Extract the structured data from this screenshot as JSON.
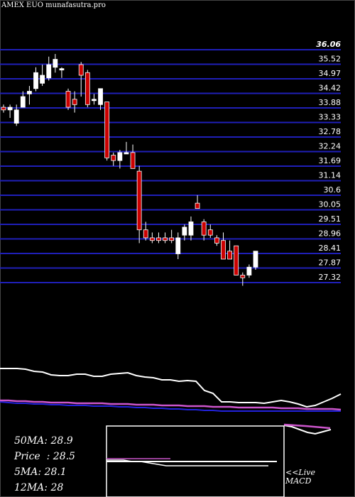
{
  "ticker": "AMEX  EUO munafasutra.pro",
  "stats": [
    {
      "label": "50MA",
      "value": "28.9"
    },
    {
      "label": "Price",
      "value": "28.5"
    },
    {
      "label": "5MA",
      "value": "28.1"
    },
    {
      "label": "12MA",
      "value": "28"
    }
  ],
  "macd_labels": {
    "live": "<<Live",
    "macd": "MACD"
  },
  "colors": {
    "up": "#ffffff",
    "down": "#cc0000",
    "grid": "#1f1fb8",
    "ma_pink": "#cc55cc",
    "ma_blue": "#2222dd"
  },
  "chart_data": {
    "type": "candlestick",
    "y_ticks": [
      "36.06",
      "35.52",
      "34.97",
      "34.42",
      "33.88",
      "33.33",
      "32.78",
      "32.24",
      "31.69",
      "31.14",
      "30.6",
      "30.05",
      "29.51",
      "28.96",
      "28.41",
      "27.87",
      "27.32"
    ],
    "ylim": [
      27.32,
      36.06
    ],
    "candles": [
      {
        "o": 33.9,
        "h": 34.0,
        "l": 33.7,
        "c": 33.8
      },
      {
        "o": 33.8,
        "h": 34.0,
        "l": 33.5,
        "c": 33.9
      },
      {
        "o": 33.3,
        "h": 34.0,
        "l": 33.2,
        "c": 33.8
      },
      {
        "o": 33.9,
        "h": 34.5,
        "l": 33.9,
        "c": 34.3
      },
      {
        "o": 34.4,
        "h": 34.7,
        "l": 34.0,
        "c": 34.5
      },
      {
        "o": 34.6,
        "h": 35.4,
        "l": 34.5,
        "c": 35.2
      },
      {
        "o": 34.8,
        "h": 35.5,
        "l": 34.7,
        "c": 35.1
      },
      {
        "o": 35.0,
        "h": 35.8,
        "l": 34.9,
        "c": 35.5
      },
      {
        "o": 35.4,
        "h": 35.9,
        "l": 35.2,
        "c": 35.7
      },
      {
        "o": 35.35,
        "h": 35.4,
        "l": 35.0,
        "c": 35.35
      },
      {
        "o": 34.5,
        "h": 34.6,
        "l": 33.8,
        "c": 33.9
      },
      {
        "o": 34.2,
        "h": 34.5,
        "l": 33.7,
        "c": 34.0
      },
      {
        "o": 35.5,
        "h": 35.6,
        "l": 34.3,
        "c": 35.1
      },
      {
        "o": 35.2,
        "h": 35.3,
        "l": 33.9,
        "c": 34.0
      },
      {
        "o": 34.2,
        "h": 34.4,
        "l": 34.0,
        "c": 34.2
      },
      {
        "o": 34.0,
        "h": 34.6,
        "l": 33.8,
        "c": 34.6
      },
      {
        "o": 34.1,
        "h": 34.1,
        "l": 31.9,
        "c": 32.0
      },
      {
        "o": 32.1,
        "h": 32.2,
        "l": 31.7,
        "c": 31.9
      },
      {
        "o": 31.9,
        "h": 32.3,
        "l": 31.6,
        "c": 32.2
      },
      {
        "o": 32.2,
        "h": 32.6,
        "l": 32.2,
        "c": 32.2
      },
      {
        "o": 32.2,
        "h": 32.5,
        "l": 31.6,
        "c": 31.6
      },
      {
        "o": 31.5,
        "h": 31.7,
        "l": 28.8,
        "c": 29.3
      },
      {
        "o": 29.3,
        "h": 29.6,
        "l": 28.9,
        "c": 29.0
      },
      {
        "o": 29.0,
        "h": 29.2,
        "l": 28.8,
        "c": 28.9
      },
      {
        "o": 29.0,
        "h": 29.2,
        "l": 28.8,
        "c": 28.9
      },
      {
        "o": 29.0,
        "h": 29.2,
        "l": 28.8,
        "c": 28.9
      },
      {
        "o": 29.0,
        "h": 29.3,
        "l": 28.8,
        "c": 28.9
      },
      {
        "o": 28.4,
        "h": 29.2,
        "l": 28.2,
        "c": 29.0
      },
      {
        "o": 29.1,
        "h": 29.5,
        "l": 28.9,
        "c": 29.4
      },
      {
        "o": 29.1,
        "h": 29.8,
        "l": 28.9,
        "c": 29.6
      },
      {
        "o": 30.3,
        "h": 30.6,
        "l": 30.1,
        "c": 30.1
      },
      {
        "o": 29.6,
        "h": 29.7,
        "l": 28.9,
        "c": 29.1
      },
      {
        "o": 29.3,
        "h": 29.5,
        "l": 29.0,
        "c": 29.1
      },
      {
        "o": 29.0,
        "h": 29.1,
        "l": 28.7,
        "c": 28.8
      },
      {
        "o": 28.9,
        "h": 29.2,
        "l": 28.2,
        "c": 28.2
      },
      {
        "o": 28.5,
        "h": 28.9,
        "l": 28.2,
        "c": 28.2
      },
      {
        "o": 28.7,
        "h": 28.7,
        "l": 27.6,
        "c": 27.6
      },
      {
        "o": 27.6,
        "h": 27.7,
        "l": 27.2,
        "c": 27.5
      },
      {
        "o": 27.6,
        "h": 28.0,
        "l": 27.5,
        "c": 27.9
      },
      {
        "o": 27.9,
        "h": 28.5,
        "l": 27.8,
        "c": 28.5
      }
    ],
    "ma_white": [
      61,
      61,
      61,
      60,
      57,
      56,
      52,
      51,
      51,
      53,
      53,
      50,
      50,
      53,
      54,
      55,
      51,
      49,
      48,
      45,
      45,
      43,
      44,
      43,
      30,
      26,
      14,
      14,
      13,
      13,
      13,
      12,
      14,
      16,
      14,
      11,
      7,
      9,
      14,
      19,
      25
    ],
    "ma_pink": [
      16,
      16,
      15,
      15,
      14,
      14,
      13,
      13,
      13,
      12,
      12,
      12,
      12,
      11,
      11,
      11,
      10,
      10,
      10,
      9,
      9,
      9,
      8,
      8,
      8,
      7,
      7,
      7,
      6,
      6,
      6,
      6,
      6,
      5,
      5,
      5,
      4,
      4,
      4,
      4,
      3
    ],
    "ma_blue": [
      14,
      13,
      12,
      12,
      11,
      11,
      10,
      10,
      9,
      9,
      9,
      8,
      8,
      8,
      7,
      7,
      6,
      6,
      5,
      5,
      4,
      4,
      3,
      3,
      2,
      2,
      1,
      1,
      1,
      1,
      1,
      1,
      1,
      1,
      1,
      1,
      1,
      1,
      1,
      1,
      1
    ],
    "macd_white_late": [
      6,
      4,
      0,
      -4,
      -6,
      -3,
      0
    ],
    "macd": {
      "line": [
        0,
        0,
        0,
        -1,
        -1,
        -2,
        -3,
        -4,
        -4,
        -4,
        -4,
        -4,
        -4,
        -4,
        -4,
        -4,
        -4,
        -4,
        -4,
        -4
      ],
      "signal_level": 0
    }
  }
}
